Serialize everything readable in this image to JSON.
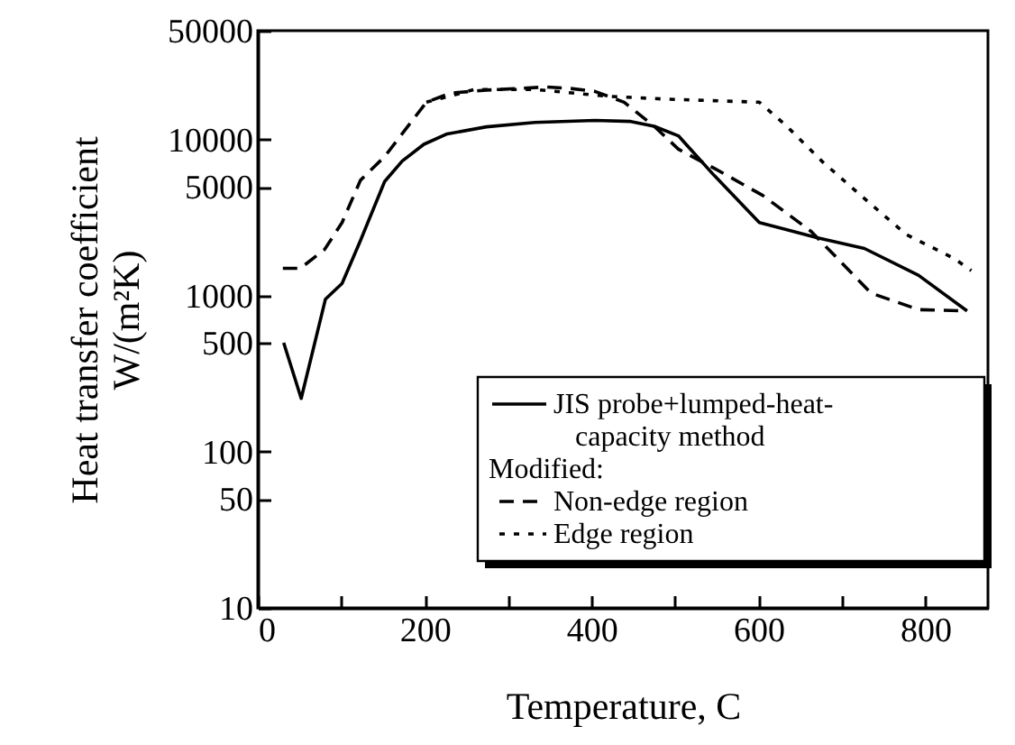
{
  "chart_data": {
    "type": "line",
    "xlabel": "Temperature, C",
    "ylabel": "Heat transfer coefficient\nW/(m²K)",
    "xlim": [
      0,
      875
    ],
    "ylim": [
      10,
      50000
    ],
    "log": "y",
    "legend": "bottom right",
    "marker": "none",
    "xticks": [
      0,
      {
        "value": 100,
        "label": null
      },
      200,
      {
        "value": 300,
        "label": null
      },
      400,
      {
        "value": 500,
        "label": null
      },
      600,
      {
        "value": 700,
        "label": null
      },
      800
    ],
    "yticks": [
      10,
      50,
      100,
      500,
      1000,
      5000,
      10000,
      50000
    ],
    "annotations": [
      "Modified:"
    ],
    "series": [
      {
        "name": "JIS probe+lumped-heat-capacity method",
        "color": "#000000",
        "line_style": "solid",
        "x": [
          31,
          52,
          81,
          101,
          123,
          152,
          173,
          199,
          227,
          274,
          332,
          404,
          447,
          475,
          504,
          547,
          601,
          670,
          727,
          792,
          850
        ],
        "values": [
          500,
          220,
          950,
          1200,
          2260,
          5400,
          7300,
          9350,
          10900,
          12100,
          12900,
          13300,
          13100,
          12200,
          10600,
          5900,
          2950,
          2360,
          2010,
          1350,
          800
        ]
      },
      {
        "name": "Non-edge region",
        "color": "#000000",
        "line_style": "dashed",
        "x": [
          30,
          51,
          80,
          101,
          123,
          152,
          202,
          231,
          274,
          346,
          375,
          404,
          439,
          475,
          504,
          547,
          605,
          663,
          735,
          792,
          850
        ],
        "values": [
          1500,
          1500,
          1980,
          2950,
          5500,
          7800,
          17400,
          19900,
          20800,
          21800,
          21300,
          20400,
          17400,
          12200,
          8700,
          6560,
          4400,
          2590,
          1040,
          815,
          800
        ]
      },
      {
        "name": "Edge region",
        "color": "#000000",
        "line_style": "dotted",
        "x": [
          202,
          260,
          332,
          418,
          490,
          601,
          634,
          677,
          727,
          777,
          835,
          855
        ],
        "values": [
          17400,
          21000,
          21000,
          19000,
          18200,
          17400,
          12200,
          7200,
          4200,
          2470,
          1730,
          1450
        ]
      }
    ]
  }
}
